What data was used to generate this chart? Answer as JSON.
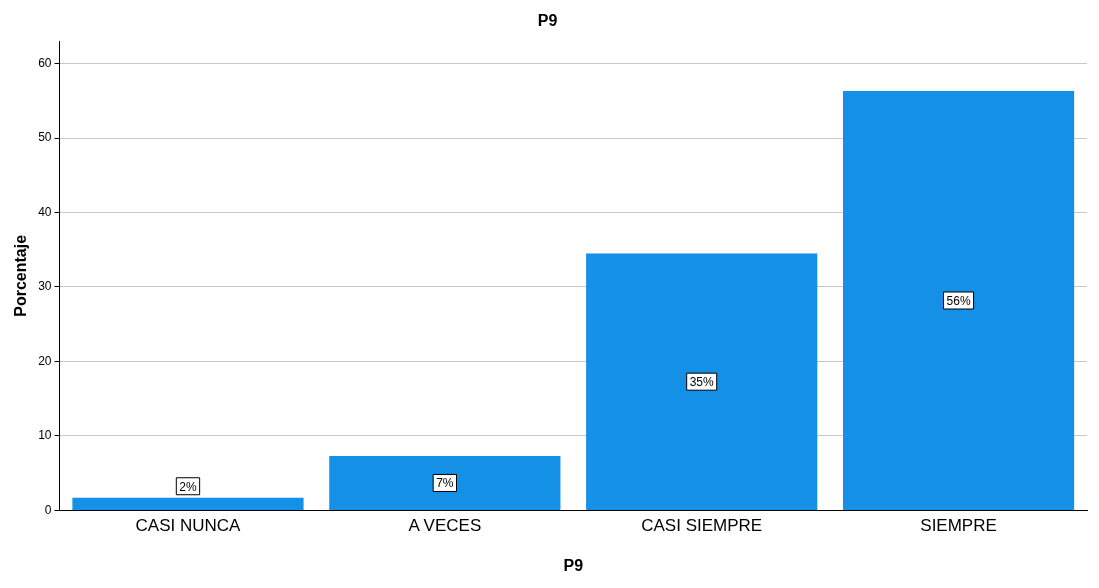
{
  "chart_data": {
    "type": "bar",
    "title": "P9",
    "xlabel": "P9",
    "ylabel": "Porcentaje",
    "categories": [
      "CASI NUNCA",
      "A VECES",
      "CASI SIEMPRE",
      "SIEMPRE"
    ],
    "values": [
      1.7,
      7.3,
      34.5,
      56.3
    ],
    "value_labels": [
      "2%",
      "7%",
      "35%",
      "56%"
    ],
    "color": "#1490e6",
    "ylim": [
      0,
      63
    ],
    "yticks": [
      0,
      10,
      20,
      30,
      40,
      50,
      60
    ],
    "grid": "y",
    "legend": false
  }
}
